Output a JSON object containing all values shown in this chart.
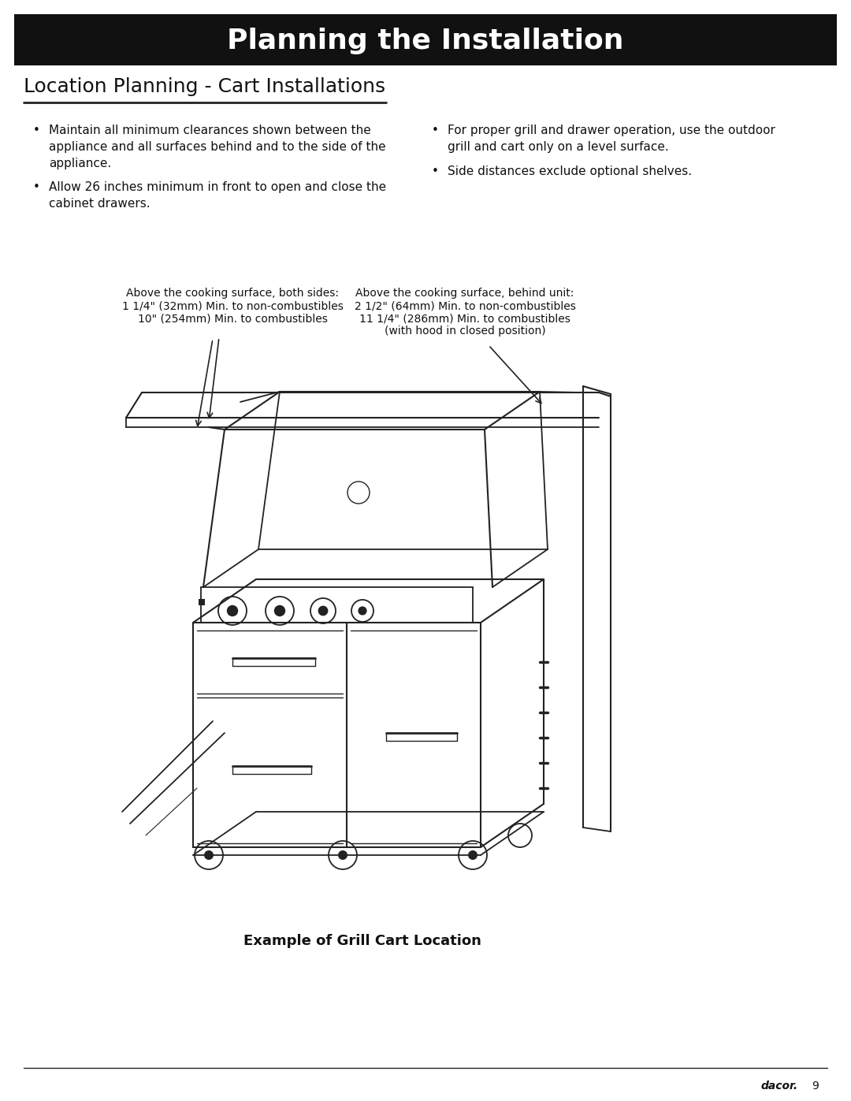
{
  "title": "Planning the Installation",
  "section_title": "Location Planning - Cart Installations",
  "bullet_left_1": "Maintain all minimum clearances shown between the\nappliance and all surfaces behind and to the side of the\nappliance.",
  "bullet_left_2": "Allow 26 inches minimum in front to open and close the\ncabinet drawers.",
  "bullet_right_1": "For proper grill and drawer operation, use the outdoor\ngrill and cart only on a level surface.",
  "bullet_right_2": "Side distances exclude optional shelves.",
  "ann_left_line1": "Above the cooking surface, both sides:",
  "ann_left_line2": "1 1/4\" (32mm) Min. to non-combustibles",
  "ann_left_line3": "10\" (254mm) Min. to combustibles",
  "ann_right_line1": "Above the cooking surface, behind unit:",
  "ann_right_line2": "2 1/2\" (64mm) Min. to non-combustibles",
  "ann_right_line3": "11 1/4\" (286mm) Min. to combustibles",
  "ann_right_line4": "(with hood in closed position)",
  "caption": "Example of Grill Cart Location",
  "footer_brand": "dacor.",
  "footer_page": "9",
  "bg_color": "#ffffff",
  "title_bg": "#111111",
  "title_fg": "#ffffff",
  "line_color": "#222222"
}
